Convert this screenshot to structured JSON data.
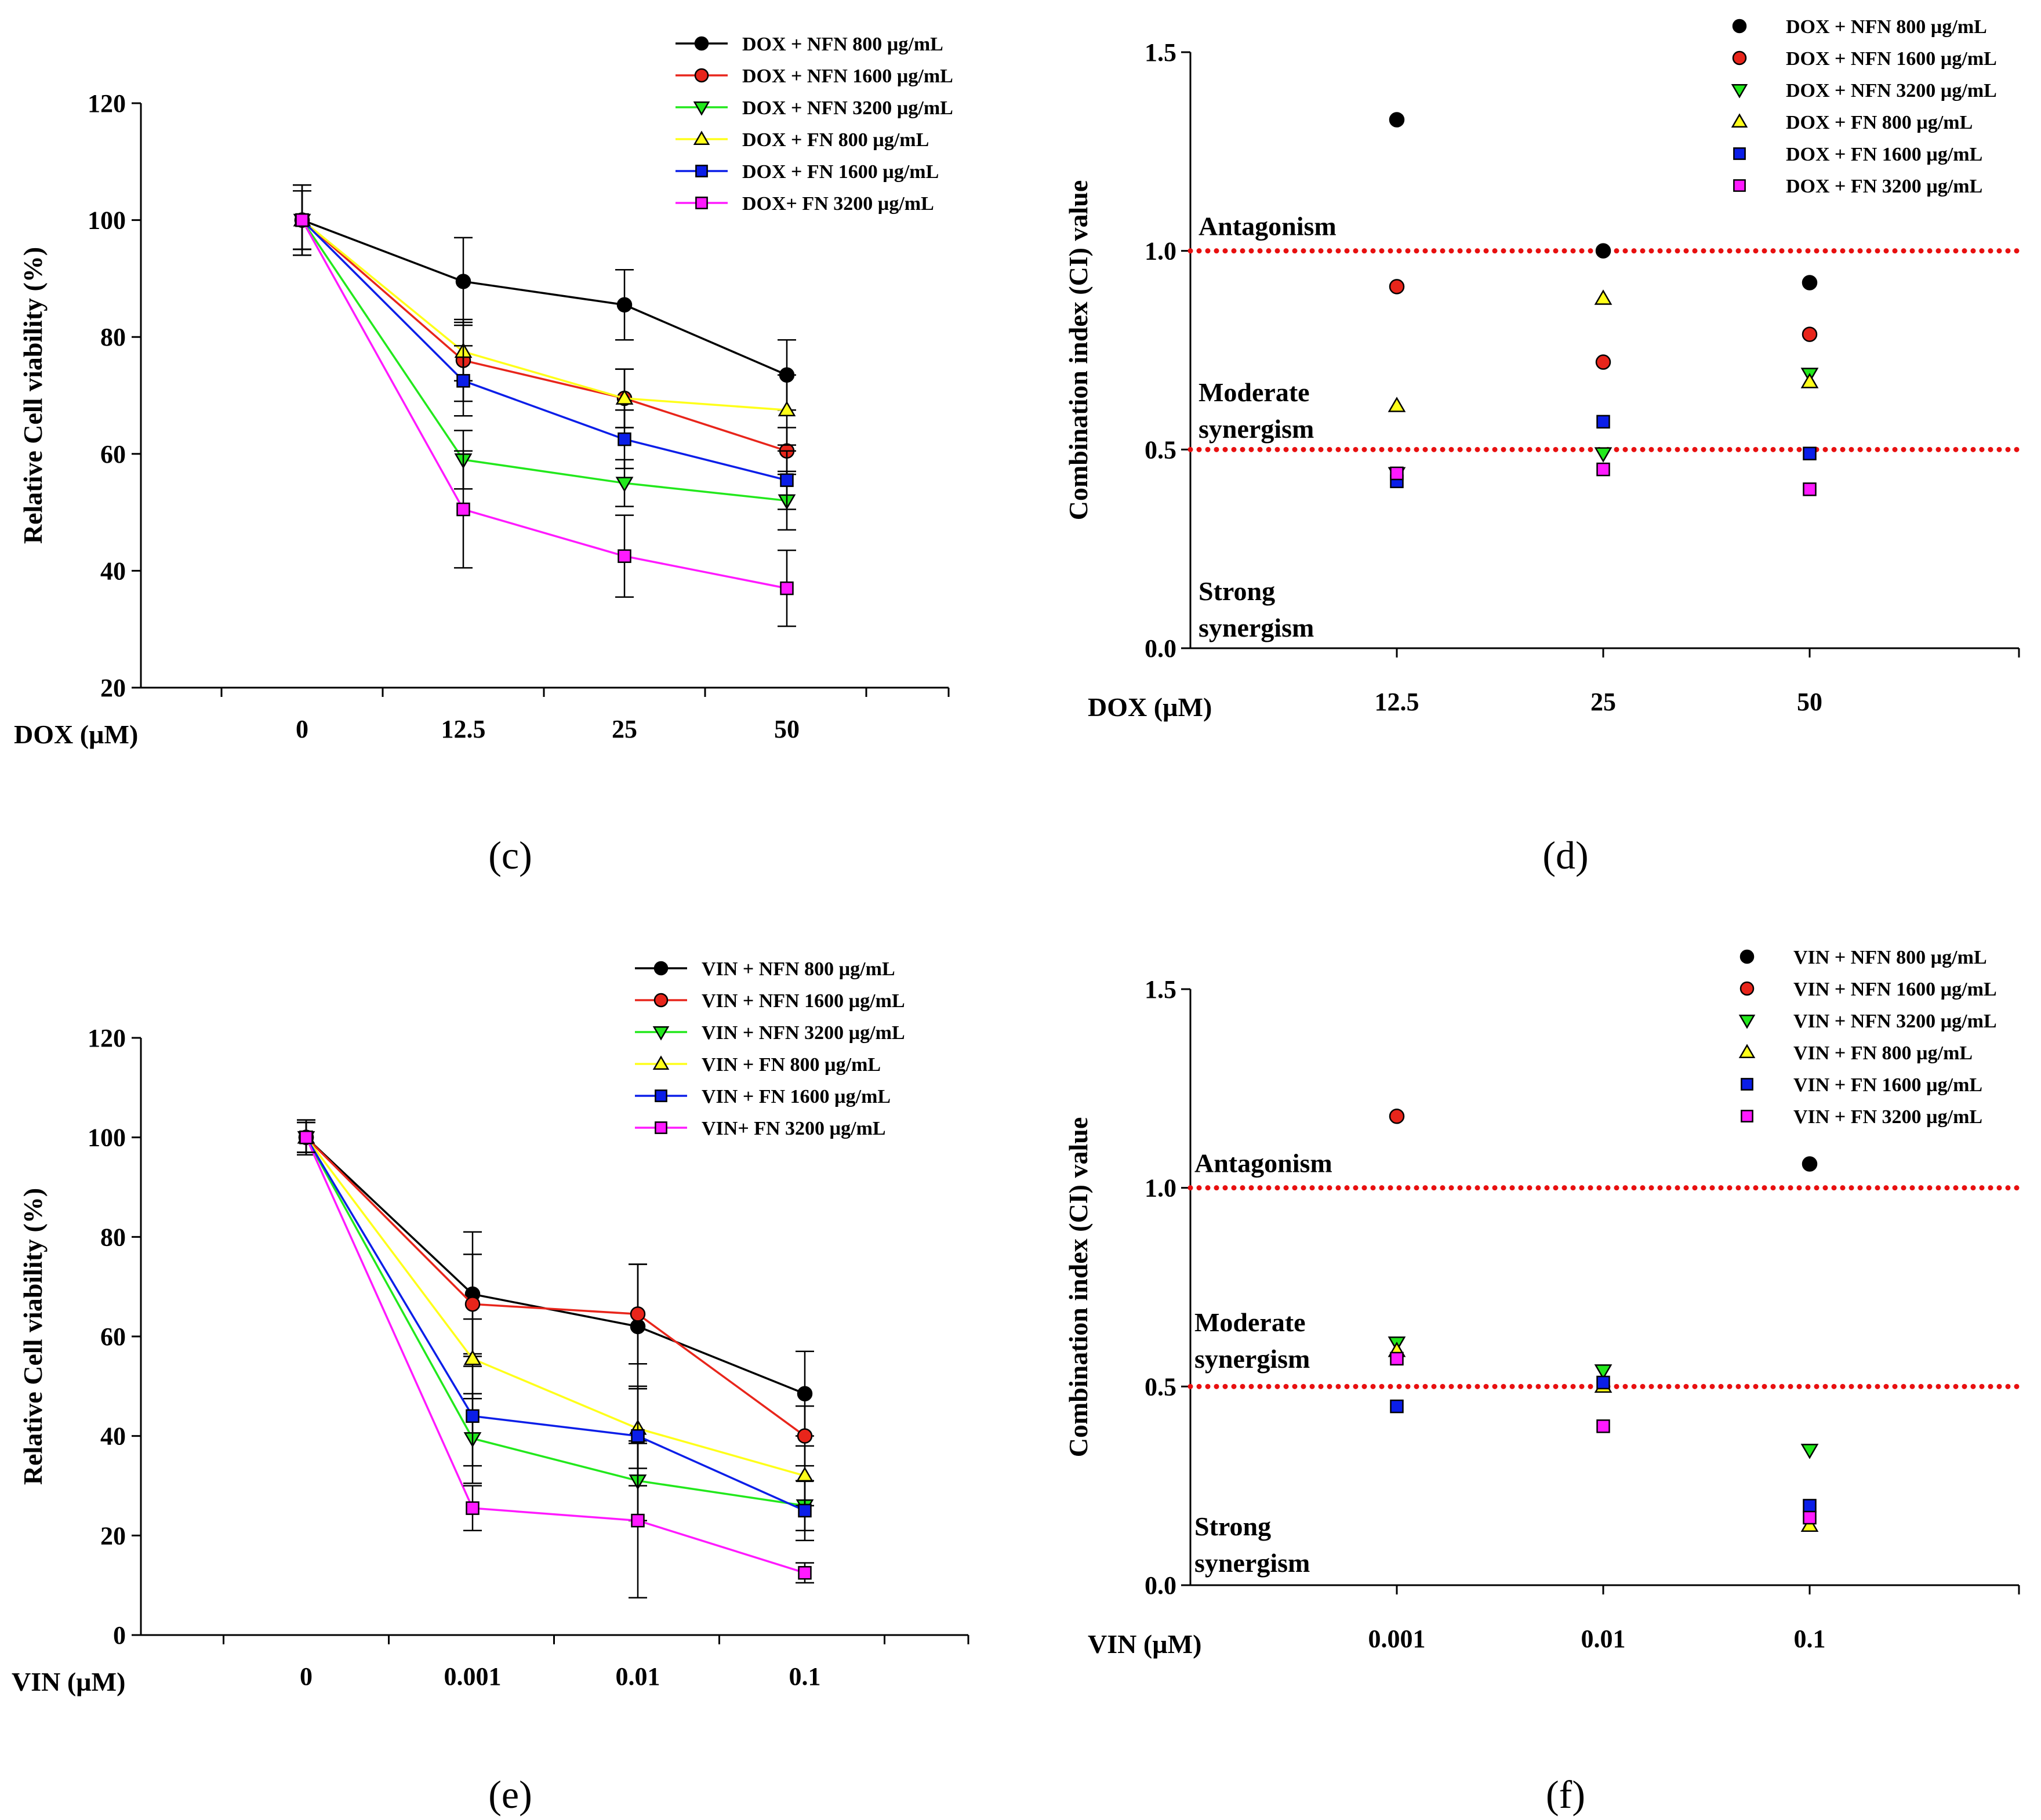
{
  "colors": {
    "black": "#000000",
    "red": "#e8251b",
    "green": "#22e81c",
    "yellow": "#ffff1a",
    "blue": "#0b1ee8",
    "magenta": "#ff1aff",
    "threshold": "#e81010"
  },
  "chart_data": [
    {
      "id": "c",
      "panel_label": "(c)",
      "type": "line",
      "ylabel": "Relative Cell viability (%)",
      "xlabel": "DOX (µM)",
      "categories": [
        "0",
        "12.5",
        "25",
        "50"
      ],
      "ylim": [
        20,
        120
      ],
      "yticks": [
        "20",
        "40",
        "60",
        "80",
        "100",
        "120"
      ],
      "legend_position": "top-right",
      "series": [
        {
          "name": "DOX + NFN 800 µg/mL",
          "color": "black",
          "marker": "circle",
          "values": [
            100,
            89.5,
            85.5,
            73.5
          ],
          "errors": [
            6,
            7.5,
            6,
            6
          ]
        },
        {
          "name": "DOX + NFN 1600 µg/mL",
          "color": "red",
          "marker": "circle",
          "values": [
            100,
            76,
            69.5,
            60.5
          ],
          "errors": [
            5,
            7,
            5,
            4
          ]
        },
        {
          "name": "DOX + NFN 3200 µg/mL",
          "color": "green",
          "marker": "triangle-down",
          "values": [
            100,
            59,
            55,
            52
          ],
          "errors": [
            5,
            5,
            4,
            5
          ]
        },
        {
          "name": "DOX + FN 800 µg/mL",
          "color": "yellow",
          "marker": "triangle-up",
          "values": [
            100,
            77.5,
            69.5,
            67.5
          ],
          "errors": [
            5,
            5,
            5,
            6
          ]
        },
        {
          "name": "DOX + FN 1600 µg/mL",
          "color": "blue",
          "marker": "square",
          "values": [
            100,
            72.5,
            62.5,
            55.5
          ],
          "errors": [
            5,
            6,
            5,
            5
          ]
        },
        {
          "name": "DOX+ FN 3200 µg/mL",
          "color": "magenta",
          "marker": "square",
          "values": [
            100,
            50.5,
            42.5,
            37
          ],
          "errors": [
            6,
            10,
            7,
            6.5
          ]
        }
      ]
    },
    {
      "id": "d",
      "panel_label": "(d)",
      "type": "scatter",
      "ylabel": "Combination index (CI) value",
      "xlabel": "DOX (µM)",
      "categories": [
        "12.5",
        "25",
        "50"
      ],
      "ylim": [
        0,
        1.5
      ],
      "yticks": [
        "0.0",
        "0.5",
        "1.0",
        "1.5"
      ],
      "thresholds": [
        1.0,
        0.5
      ],
      "region_labels": {
        "antagonism": "Antagonism",
        "moderate_1": "Moderate",
        "moderate_2": "synergism",
        "strong_1": "Strong",
        "strong_2": "synergism"
      },
      "legend_position": "top-right",
      "series": [
        {
          "name": "DOX + NFN 800 µg/mL",
          "color": "black",
          "marker": "circle",
          "values": [
            1.33,
            1.0,
            0.92
          ]
        },
        {
          "name": "DOX + NFN 1600 µg/mL",
          "color": "red",
          "marker": "circle",
          "values": [
            0.91,
            0.72,
            0.79
          ]
        },
        {
          "name": "DOX + NFN 3200 µg/mL",
          "color": "green",
          "marker": "triangle-down",
          "values": [
            0.44,
            0.49,
            0.69
          ]
        },
        {
          "name": "DOX + FN 800 µg/mL",
          "color": "yellow",
          "marker": "triangle-up",
          "values": [
            0.61,
            0.88,
            0.67
          ]
        },
        {
          "name": "DOX + FN 1600 µg/mL",
          "color": "blue",
          "marker": "square",
          "values": [
            0.42,
            0.57,
            0.49
          ]
        },
        {
          "name": "DOX + FN 3200 µg/mL",
          "color": "magenta",
          "marker": "square",
          "values": [
            0.44,
            0.45,
            0.4
          ]
        }
      ]
    },
    {
      "id": "e",
      "panel_label": "(e)",
      "type": "line",
      "ylabel": "Relative Cell viability (%)",
      "xlabel": "VIN (µM)",
      "categories": [
        "0",
        "0.001",
        "0.01",
        "0.1"
      ],
      "ylim": [
        0,
        120
      ],
      "yticks": [
        "0",
        "20",
        "40",
        "60",
        "80",
        "100",
        "120"
      ],
      "legend_position": "top-right",
      "series": [
        {
          "name": "VIN + NFN 800 µg/mL",
          "color": "black",
          "marker": "circle",
          "values": [
            100,
            68.5,
            62,
            48.5
          ],
          "errors": [
            3.5,
            12.5,
            12.5,
            8.5
          ]
        },
        {
          "name": "VIN + NFN 1600 µg/mL",
          "color": "red",
          "marker": "circle",
          "values": [
            100,
            66.5,
            64.5,
            40
          ],
          "errors": [
            3.5,
            10,
            10,
            6
          ]
        },
        {
          "name": "VIN + NFN 3200 µg/mL",
          "color": "green",
          "marker": "triangle-down",
          "values": [
            100,
            39.5,
            31,
            26
          ],
          "errors": [
            3,
            9,
            8,
            5
          ]
        },
        {
          "name": "VIN + FN 800 µg/mL",
          "color": "yellow",
          "marker": "triangle-up",
          "values": [
            100,
            55.5,
            41.5,
            32
          ],
          "errors": [
            3,
            8,
            8,
            6
          ]
        },
        {
          "name": "VIN + FN 1600 µg/mL",
          "color": "blue",
          "marker": "square",
          "values": [
            100,
            44,
            40,
            25
          ],
          "errors": [
            3,
            10,
            10,
            6
          ]
        },
        {
          "name": "VIN+ FN 3200 µg/mL",
          "color": "magenta",
          "marker": "square",
          "values": [
            100,
            25.5,
            23,
            12.5
          ],
          "errors": [
            3,
            4.5,
            15.5,
            2
          ]
        }
      ]
    },
    {
      "id": "f",
      "panel_label": "(f)",
      "type": "scatter",
      "ylabel": "Combination index (CI) value",
      "xlabel": "VIN (µM)",
      "categories": [
        "0.001",
        "0.01",
        "0.1"
      ],
      "ylim": [
        0,
        1.5
      ],
      "yticks": [
        "0.0",
        "0.5",
        "1.0",
        "1.5"
      ],
      "thresholds": [
        1.0,
        0.5
      ],
      "region_labels": {
        "antagonism": "Antagonism",
        "moderate_1": "Moderate",
        "moderate_2": "synergism",
        "strong_1": "Strong",
        "strong_2": "synergism"
      },
      "legend_position": "top-right",
      "series": [
        {
          "name": "VIN + NFN 800 µg/mL",
          "color": "black",
          "marker": "circle",
          "values": [
            null,
            null,
            1.06
          ]
        },
        {
          "name": "VIN + NFN 1600 µg/mL",
          "color": "red",
          "marker": "circle",
          "values": [
            1.18,
            null,
            null
          ]
        },
        {
          "name": "VIN + NFN 3200 µg/mL",
          "color": "green",
          "marker": "triangle-down",
          "values": [
            0.61,
            0.54,
            0.34
          ]
        },
        {
          "name": "VIN + FN 800 µg/mL",
          "color": "yellow",
          "marker": "triangle-up",
          "values": [
            0.59,
            0.5,
            0.15
          ]
        },
        {
          "name": "VIN + FN 1600 µg/mL",
          "color": "blue",
          "marker": "square",
          "values": [
            0.45,
            0.51,
            0.2
          ]
        },
        {
          "name": "VIN + FN 3200 µg/mL",
          "color": "magenta",
          "marker": "square",
          "values": [
            0.57,
            0.4,
            0.17
          ]
        }
      ]
    }
  ]
}
